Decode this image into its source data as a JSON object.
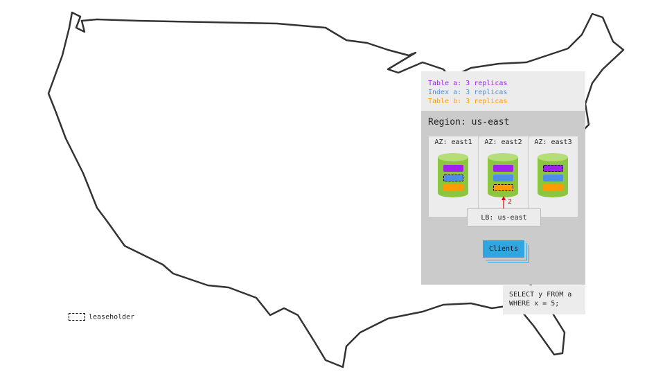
{
  "legend": {
    "lines": [
      {
        "text": "Table a: 3 replicas",
        "color": "#a020f0"
      },
      {
        "text": "Index a: 3 replicas",
        "color": "#4d8fe6"
      },
      {
        "text": "Table b: 3 replicas",
        "color": "#ff9c00"
      }
    ]
  },
  "region": {
    "title": "Region: us-east",
    "zones": [
      {
        "label": "AZ: east1",
        "leaseholder": "index_a"
      },
      {
        "label": "AZ: east2",
        "leaseholder": "table_b"
      },
      {
        "label": "AZ: east3",
        "leaseholder": "table_a"
      }
    ],
    "arrow_label": "2",
    "load_balancer": "LB: us-east",
    "clients": "Clients"
  },
  "query": "SELECT y FROM a\nWHERE x = 5;",
  "leaseholder_legend": "leaseholder",
  "colors": {
    "node": "#8cc63f",
    "node_top": "#b5dd78",
    "table_a": "#a020f0",
    "index_a": "#4d8fe6",
    "table_b": "#ff9c00",
    "clients": "#31a5e0",
    "arrow": "#e00000"
  }
}
